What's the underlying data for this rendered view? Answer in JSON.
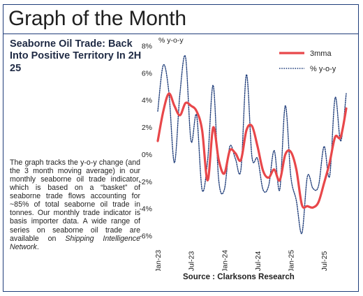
{
  "header": {
    "title": "Graph of the Month"
  },
  "article": {
    "subtitle": "Seaborne Oil Trade: Back Into Positive Territory In 2H 25",
    "body_main": "The graph tracks the y-o-y change (and the 3 month moving average) in our monthly seaborne oil trade indicator, which is based on a “basket” of seaborne trade flows accounting for ~85% of total seaborne oil trade in tonnes. Our monthly trade indicator is basis importer data. A wide range of series on seaborne oil trade are available on ",
    "body_emph": "Shipping Intelligence Network",
    "body_end": "."
  },
  "footer": {
    "source": "Source : Clarksons Research"
  },
  "colors": {
    "mma": "#e8474a",
    "yoy": "#1f3d7a",
    "frame": "#1f3d7a"
  },
  "chart_data": {
    "type": "line",
    "ylabel": "% y-o-y",
    "ylim": [
      -6,
      8
    ],
    "yticks": [
      "8%",
      "6%",
      "4%",
      "2%",
      "0%",
      "-2%",
      "-4%",
      "-6%"
    ],
    "ytick_values": [
      8,
      6,
      4,
      2,
      0,
      -2,
      -4,
      -6
    ],
    "xticks": [
      "Jan-23",
      "Jul-23",
      "Jan-24",
      "Jul-24",
      "Jan-25",
      "Jul-25"
    ],
    "xtick_months": [
      "2023-01",
      "2023-07",
      "2024-01",
      "2024-07",
      "2025-01",
      "2025-07"
    ],
    "x_months": [
      "2023-01",
      "2023-02",
      "2023-03",
      "2023-04",
      "2023-05",
      "2023-06",
      "2023-07",
      "2023-08",
      "2023-09",
      "2023-10",
      "2023-11",
      "2023-12",
      "2024-01",
      "2024-02",
      "2024-03",
      "2024-04",
      "2024-05",
      "2024-06",
      "2024-07",
      "2024-08",
      "2024-09",
      "2024-10",
      "2024-11",
      "2024-12",
      "2025-01",
      "2025-02",
      "2025-03",
      "2025-04",
      "2025-05",
      "2025-06",
      "2025-07",
      "2025-08",
      "2025-09",
      "2025-10",
      "2025-11"
    ],
    "legend_position": "top-right",
    "grid": false,
    "series": [
      {
        "name": "3mma",
        "style": "solid",
        "values": [
          1.0,
          3.2,
          4.5,
          3.6,
          2.9,
          3.8,
          3.6,
          3.2,
          1.8,
          -1.9,
          2.0,
          -0.4,
          -1.4,
          0.3,
          0.1,
          -0.4,
          1.8,
          2.1,
          0.6,
          -1.2,
          -1.7,
          -1.1,
          -1.9,
          0.0,
          0.2,
          -1.1,
          -3.7,
          -3.8,
          -3.9,
          -3.5,
          -2.1,
          -0.6,
          1.3,
          1.3,
          3.4
        ]
      },
      {
        "name": "% y-o-y",
        "style": "dotted",
        "values": [
          3.2,
          6.6,
          4.6,
          -0.6,
          4.5,
          7.2,
          1.0,
          2.9,
          -2.6,
          -0.4,
          5.1,
          -1.9,
          -2.6,
          0.6,
          -0.3,
          -1.1,
          5.9,
          -0.2,
          -0.3,
          -2.6,
          -2.3,
          0.3,
          -2.6,
          3.6,
          -1.6,
          -3.4,
          -5.8,
          -1.6,
          -2.5,
          -2.3,
          0.6,
          -1.6,
          4.2,
          1.0,
          4.5
        ]
      }
    ]
  }
}
